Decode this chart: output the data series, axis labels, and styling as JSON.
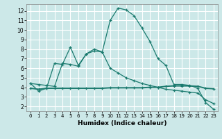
{
  "xlabel": "Humidex (Indice chaleur)",
  "bg_color": "#cce8e8",
  "line_color": "#1a7a6e",
  "grid_color": "#ffffff",
  "line1_x": [
    0,
    1,
    2,
    3,
    4,
    5,
    6,
    7,
    8,
    9,
    10,
    11,
    12,
    13,
    14,
    15,
    16,
    17,
    18,
    19,
    20,
    21,
    22,
    23
  ],
  "line1_y": [
    4.4,
    3.6,
    3.9,
    6.5,
    6.4,
    8.2,
    6.3,
    7.5,
    8.0,
    7.7,
    11.0,
    12.3,
    12.1,
    11.5,
    10.2,
    8.8,
    7.0,
    6.3,
    4.3,
    4.3,
    4.2,
    3.9,
    2.4,
    1.7
  ],
  "line2_x": [
    0,
    1,
    2,
    3,
    4,
    5,
    6,
    7,
    8,
    9,
    10,
    11,
    12,
    13,
    14,
    15,
    16,
    17,
    18,
    19,
    20,
    21,
    22,
    23
  ],
  "line2_y": [
    3.9,
    3.8,
    3.9,
    3.9,
    3.9,
    3.9,
    3.9,
    3.9,
    3.9,
    3.9,
    3.95,
    3.95,
    3.95,
    3.95,
    3.95,
    4.0,
    4.0,
    4.1,
    4.15,
    4.15,
    4.15,
    4.1,
    3.9,
    3.85
  ],
  "line3_x": [
    0,
    1,
    2,
    3,
    4,
    5,
    6,
    7,
    8,
    9,
    10,
    11,
    12,
    13,
    14,
    15,
    16,
    17,
    18,
    19,
    20,
    21,
    22,
    23
  ],
  "line3_y": [
    4.4,
    4.3,
    4.2,
    4.1,
    6.5,
    6.4,
    6.2,
    7.5,
    7.8,
    7.7,
    6.0,
    5.5,
    5.0,
    4.7,
    4.4,
    4.2,
    4.0,
    3.8,
    3.7,
    3.6,
    3.5,
    3.4,
    2.7,
    2.3
  ],
  "xlim": [
    -0.5,
    23.5
  ],
  "ylim": [
    1.5,
    12.7
  ],
  "yticks": [
    2,
    3,
    4,
    5,
    6,
    7,
    8,
    9,
    10,
    11,
    12
  ],
  "xticks": [
    0,
    1,
    2,
    3,
    4,
    5,
    6,
    7,
    8,
    9,
    10,
    11,
    12,
    13,
    14,
    15,
    16,
    17,
    18,
    19,
    20,
    21,
    22,
    23
  ]
}
